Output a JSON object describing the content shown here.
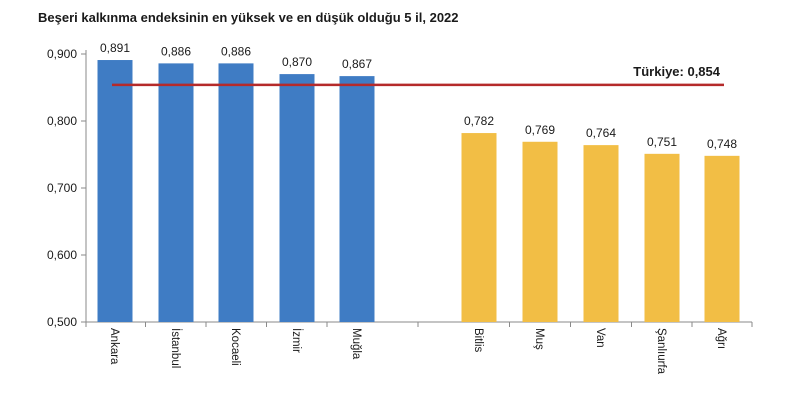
{
  "chart_data": {
    "type": "bar",
    "title": "Beşeri kalkınma endeksinin en yüksek ve en düşük olduğu 5 il, 2022",
    "categories": [
      "Ankara",
      "İstanbul",
      "Kocaeli",
      "İzmir",
      "Muğla",
      "Bitlis",
      "Muş",
      "Van",
      "Şanlıurfa",
      "Ağrı"
    ],
    "values": [
      0.891,
      0.886,
      0.886,
      0.87,
      0.867,
      0.782,
      0.769,
      0.764,
      0.751,
      0.748
    ],
    "value_labels": [
      "0,891",
      "0,886",
      "0,886",
      "0,870",
      "0,867",
      "0,782",
      "0,769",
      "0,764",
      "0,751",
      "0,748"
    ],
    "groups": [
      {
        "categories": [
          "Ankara",
          "İstanbul",
          "Kocaeli",
          "İzmir",
          "Muğla"
        ],
        "color": "#3f7cc4"
      },
      {
        "categories": [
          "Bitlis",
          "Muş",
          "Van",
          "Şanlıurfa",
          "Ağrı"
        ],
        "color": "#f2be45"
      }
    ],
    "ylim": [
      0.5,
      0.9
    ],
    "yticks": [
      0.5,
      0.6,
      0.7,
      0.8,
      0.9
    ],
    "ytick_labels": [
      "0,500",
      "0,600",
      "0,700",
      "0,800",
      "0,900"
    ],
    "reference_line": {
      "value": 0.854,
      "label": "Türkiye: 0,854",
      "color": "#b52a2a"
    },
    "xlabel": "",
    "ylabel": "",
    "grid": false,
    "legend": "none"
  }
}
